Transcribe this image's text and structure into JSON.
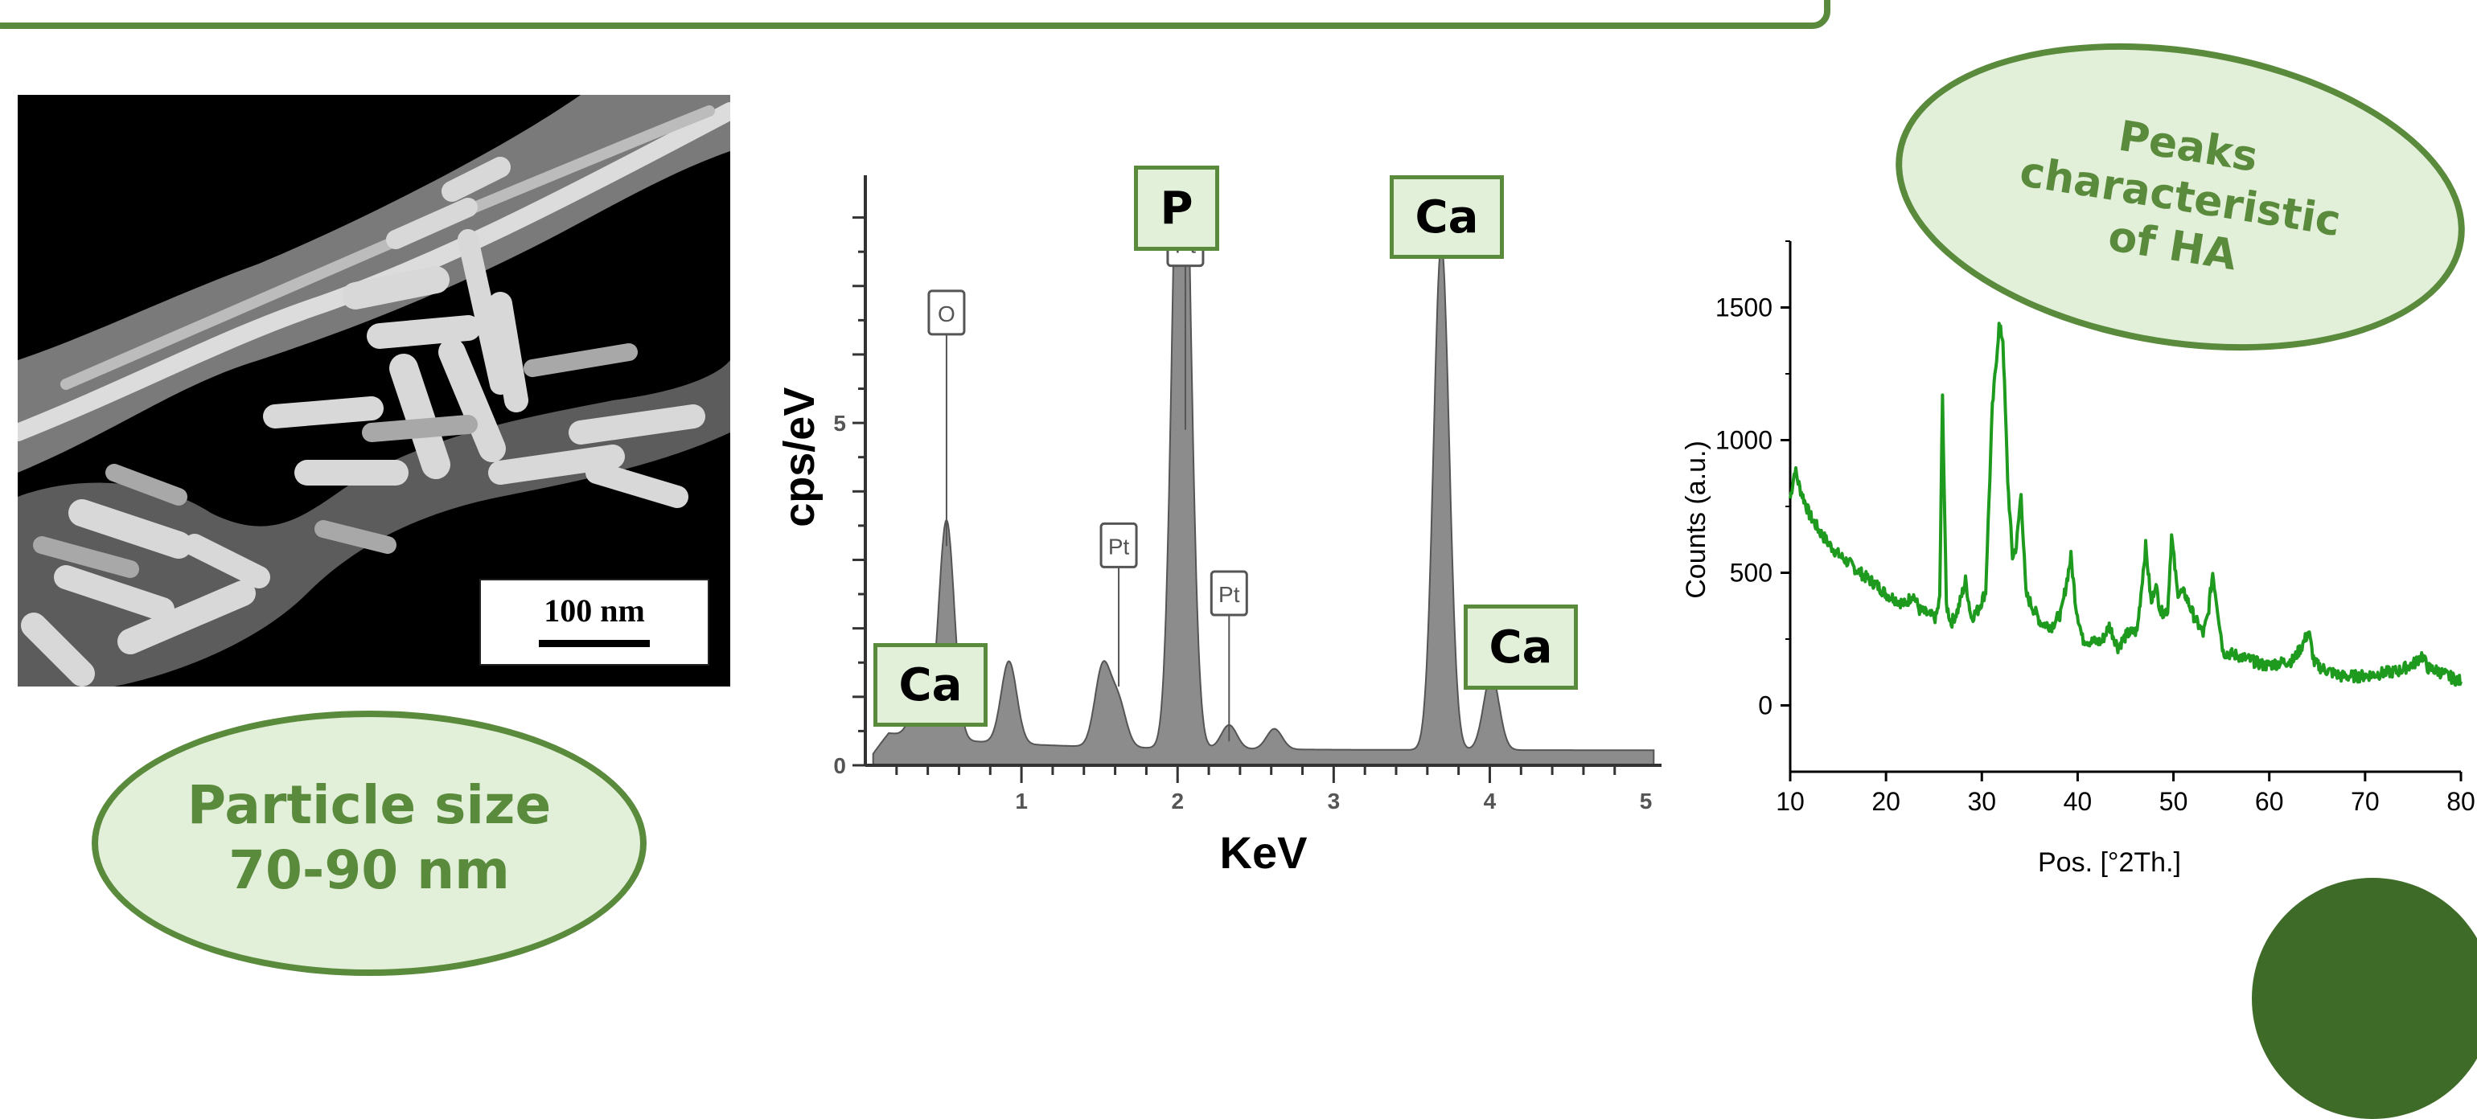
{
  "sem": {
    "scale_label": "100 nm"
  },
  "particle_note": {
    "text": "Particle size\n70-90 nm"
  },
  "peaks_note": {
    "text": "Peaks\ncharacteristic\nof HA"
  },
  "eds_labels": {
    "ca_low": "Ca",
    "p": "P",
    "ca_high": "Ca",
    "ca_right": "Ca"
  },
  "colors": {
    "accent_green": "#5a8a3c",
    "label_fill": "#e2efd9",
    "xrd_line": "#1e9a1e",
    "eds_fill": "#8c8c8c"
  },
  "chart_data": [
    {
      "type": "area",
      "title": "",
      "xlabel": "KeV",
      "ylabel": "cps/eV",
      "xlim": [
        0,
        5.1
      ],
      "ylim": [
        0,
        8.5
      ],
      "x_ticks": [
        1,
        2,
        3,
        4,
        5
      ],
      "y_ticks": [
        0,
        5
      ],
      "grid": false,
      "peaks": [
        {
          "element": "O",
          "x": 0.52,
          "y": 3.2
        },
        {
          "element": "Ca",
          "x": 0.34,
          "y": 0.55
        },
        {
          "element": "",
          "x": 0.92,
          "y": 1.2
        },
        {
          "element": "Pt",
          "x": 1.52,
          "y": 1.15
        },
        {
          "element": "Pt",
          "x": 1.62,
          "y": 0.65
        },
        {
          "element": "P",
          "x": 2.01,
          "y": 7.4
        },
        {
          "element": "Pt",
          "x": 2.05,
          "y": 4.9
        },
        {
          "element": "Pt",
          "x": 2.33,
          "y": 0.35
        },
        {
          "element": "",
          "x": 2.62,
          "y": 0.3
        },
        {
          "element": "Ca",
          "x": 3.69,
          "y": 7.4
        },
        {
          "element": "Ca",
          "x": 4.01,
          "y": 1.1
        }
      ],
      "annotations": [
        "O",
        "Pt",
        "Pt",
        "Pt"
      ]
    },
    {
      "type": "line",
      "title": "",
      "xlabel": "Pos. [°2Th.]",
      "ylabel": "Counts (a.u.)",
      "xlim": [
        10,
        80
      ],
      "ylim": [
        -250,
        1750
      ],
      "x_ticks": [
        10,
        20,
        30,
        40,
        50,
        60,
        70,
        80
      ],
      "y_ticks": [
        0,
        500,
        1000,
        1500
      ],
      "grid": false,
      "series": [
        {
          "name": "",
          "x": [
            10,
            10.5,
            11,
            12,
            13,
            14,
            15,
            16,
            17,
            18,
            19,
            20,
            21,
            22,
            22.8,
            23.5,
            24.5,
            25.2,
            25.6,
            25.9,
            26.3,
            26.8,
            27.5,
            28.3,
            28.9,
            29.6,
            30.4,
            31.1,
            31.8,
            32.2,
            32.7,
            33.2,
            33.6,
            34.1,
            34.6,
            35.3,
            36.2,
            37.3,
            38.3,
            39.3,
            39.8,
            40.5,
            41.5,
            42.5,
            43.3,
            44.2,
            45.2,
            46.2,
            46.6,
            47.1,
            47.7,
            48.1,
            48.7,
            49.4,
            49.8,
            50.4,
            51.2,
            52.2,
            53.1,
            53.6,
            54.1,
            55.2,
            56.5,
            58.1,
            59.5,
            61.1,
            62.5,
            63.5,
            64.1,
            64.7,
            65.5,
            67.5,
            69.5,
            71.5,
            73.5,
            75.2,
            75.9,
            76.6,
            77.6,
            78.7,
            80
          ],
          "y": [
            780,
            890,
            820,
            720,
            660,
            610,
            570,
            540,
            510,
            480,
            455,
            420,
            400,
            380,
            420,
            360,
            340,
            330,
            400,
            1160,
            380,
            310,
            360,
            470,
            330,
            360,
            430,
            1120,
            1430,
            1380,
            850,
            560,
            600,
            800,
            420,
            370,
            310,
            300,
            350,
            560,
            380,
            250,
            240,
            240,
            300,
            220,
            270,
            280,
            420,
            600,
            380,
            460,
            350,
            360,
            640,
            430,
            420,
            330,
            270,
            340,
            500,
            200,
            190,
            170,
            150,
            160,
            170,
            230,
            280,
            160,
            140,
            110,
            110,
            120,
            130,
            160,
            190,
            140,
            130,
            110,
            90
          ]
        }
      ]
    }
  ]
}
